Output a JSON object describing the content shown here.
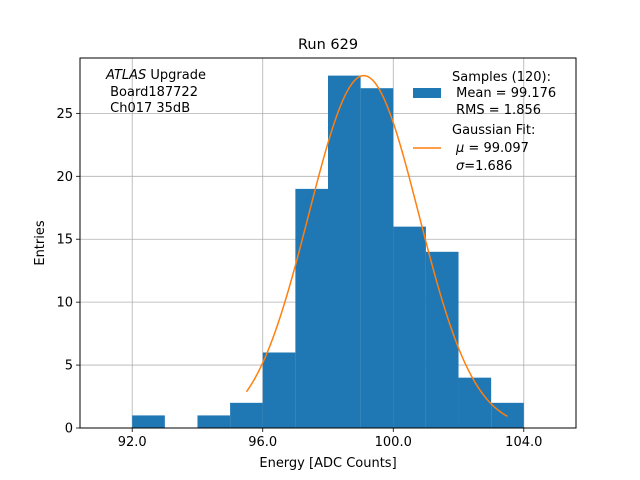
{
  "chart_data": {
    "type": "histogram",
    "title": "Run 629",
    "xlabel": "Energy [ADC Counts]",
    "ylabel": "Entries",
    "xlim": [
      90.4,
      105.6
    ],
    "ylim": [
      0,
      29.4
    ],
    "grid": true,
    "x_ticks": [
      92.0,
      96.0,
      100.0,
      104.0
    ],
    "x_tick_labels": [
      "92.0",
      "96.0",
      "100.0",
      "104.0"
    ],
    "y_ticks": [
      0,
      5,
      10,
      15,
      20,
      25
    ],
    "y_tick_labels": [
      "0",
      "5",
      "10",
      "15",
      "20",
      "25"
    ],
    "bin_edges": [
      92,
      93,
      94,
      95,
      96,
      97,
      98,
      99,
      100,
      101,
      102,
      103,
      104
    ],
    "counts": [
      1,
      0,
      1,
      2,
      6,
      19,
      28,
      27,
      16,
      14,
      4,
      2
    ],
    "bar_color": "#1f77b4",
    "fit": {
      "type": "gaussian",
      "mu": 99.097,
      "sigma": 1.686,
      "amplitude": 28.0,
      "x_range": [
        95.5,
        103.5
      ],
      "color": "#ff7f0e"
    },
    "legend": {
      "position": "top-right",
      "samples_line1": "Samples (120):",
      "samples_line2": " Mean = 99.176",
      "samples_line3": " RMS = 1.856",
      "fit_line1": "Gaussian Fit:",
      "fit_line2_sym": "μ",
      "fit_line2_val": " = 99.097",
      "fit_line3_sym": "σ",
      "fit_line3_val": "=1.686"
    },
    "annotation": {
      "italic": "ATLAS",
      "rest": " Upgrade",
      "line2": " Board187722",
      "line3": " Ch017 35dB"
    }
  }
}
